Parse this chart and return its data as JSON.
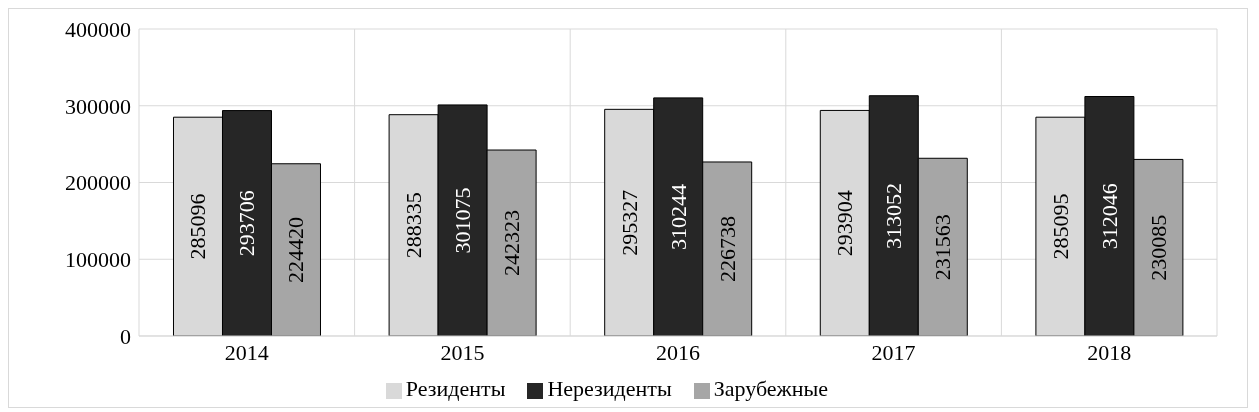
{
  "chart_data": {
    "type": "bar",
    "categories": [
      "2014",
      "2015",
      "2016",
      "2017",
      "2018"
    ],
    "series": [
      {
        "name": "Резиденты",
        "color": "#d9d9d9",
        "values": [
          285096,
          288335,
          295327,
          293904,
          285095
        ]
      },
      {
        "name": "Нерезиденты",
        "color": "#262626",
        "values": [
          293706,
          301075,
          310244,
          313052,
          312046
        ]
      },
      {
        "name": "Зарубежные",
        "color": "#a6a6a6",
        "values": [
          224420,
          242323,
          226738,
          231563,
          230085
        ]
      }
    ],
    "ylim": [
      0,
      400000
    ],
    "yticks": [
      0,
      100000,
      200000,
      300000,
      400000
    ],
    "grid": true,
    "legend": "bottom",
    "data_labels": true
  }
}
